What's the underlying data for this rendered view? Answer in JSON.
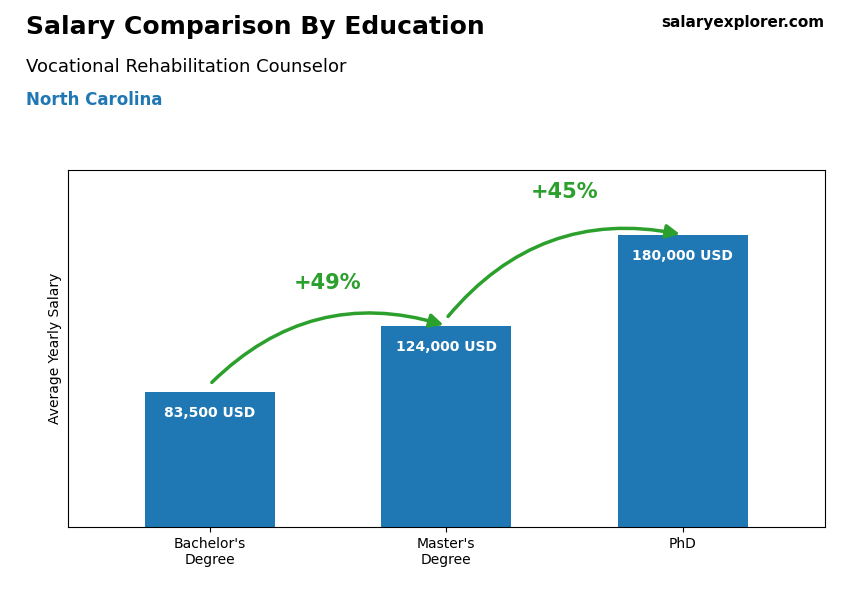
{
  "chart_data": {
    "type": "bar",
    "title": "Salary Comparison By Education",
    "subtitle": "Vocational Rehabilitation Counselor",
    "annotations": [
      "North Carolina",
      "salaryexplorer.com"
    ],
    "ylabel": "Average Yearly Salary",
    "categories": [
      "Bachelor's\nDegree",
      "Master's\nDegree",
      "PhD"
    ],
    "values": [
      83500,
      124000,
      180000
    ],
    "value_labels": [
      "83,500 USD",
      "124,000 USD",
      "180,000 USD"
    ],
    "data_labels": true,
    "change_labels": [
      "+49%",
      "+45%"
    ],
    "ylim": [
      0,
      220000
    ],
    "tick_labels": "x"
  }
}
